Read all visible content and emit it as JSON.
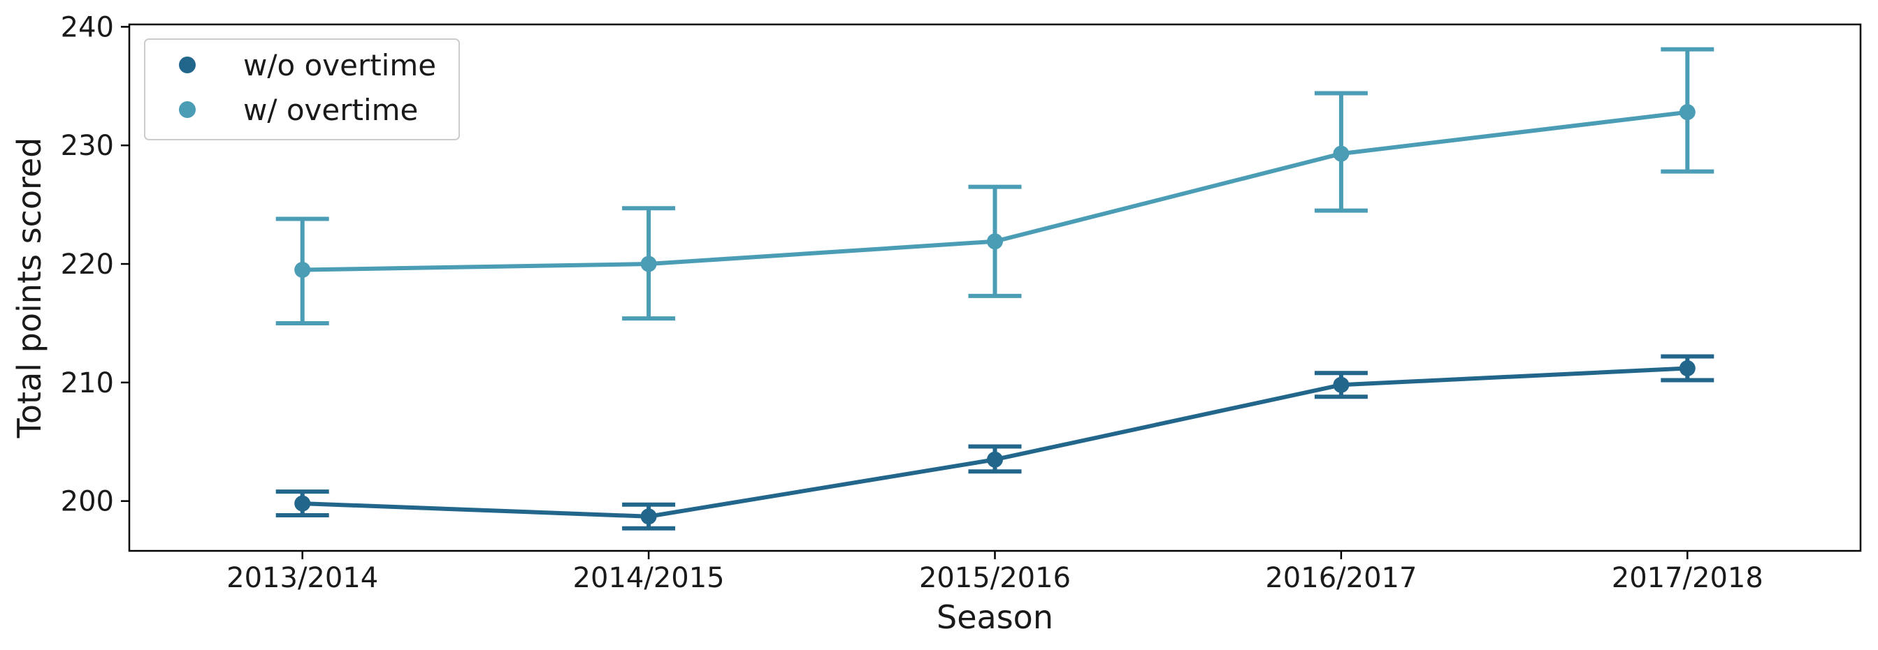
{
  "chart_data": {
    "type": "line",
    "title": "",
    "xlabel": "Season",
    "ylabel": "Total points scored",
    "categories": [
      "2013/2014",
      "2014/2015",
      "2015/2016",
      "2016/2017",
      "2017/2018"
    ],
    "ylim": [
      195.8,
      240.2
    ],
    "yticks": [
      200,
      210,
      220,
      230,
      240
    ],
    "grid": false,
    "legend": "top-left",
    "series": [
      {
        "name": "w/o overtime",
        "color": "#23668c",
        "values": [
          199.8,
          198.7,
          203.5,
          209.8,
          211.2
        ],
        "err_low": [
          198.8,
          197.7,
          202.5,
          208.8,
          210.2
        ],
        "err_high": [
          200.8,
          199.7,
          204.6,
          210.8,
          212.2
        ]
      },
      {
        "name": "w/ overtime",
        "color": "#4a9db5",
        "values": [
          219.5,
          220.0,
          221.9,
          229.3,
          232.8
        ],
        "err_low": [
          215.0,
          215.4,
          217.3,
          224.5,
          227.8
        ],
        "err_high": [
          223.8,
          224.7,
          226.5,
          234.4,
          238.1
        ]
      }
    ]
  }
}
